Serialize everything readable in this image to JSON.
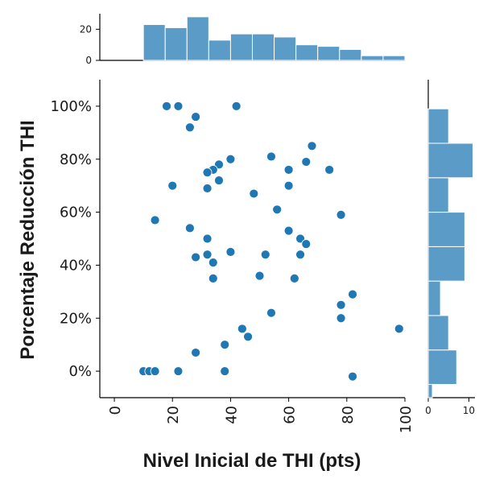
{
  "chart_data": {
    "type": "scatter",
    "title": "",
    "xlabel": "Nivel Inicial de THI (pts)",
    "ylabel": "Porcentaje Reducción THI",
    "xlim": [
      -5,
      100
    ],
    "ylim": [
      -10,
      110
    ],
    "x_ticks": [
      0,
      20,
      40,
      60,
      80,
      100
    ],
    "y_ticks": [
      0,
      20,
      40,
      60,
      80,
      100
    ],
    "y_tick_labels": [
      "0%",
      "20%",
      "40%",
      "60%",
      "80%",
      "100%"
    ],
    "grid": false,
    "point_color": "#1f77b4",
    "hist_color": "#5a9bc8",
    "points": [
      {
        "x": 18,
        "y": 100
      },
      {
        "x": 22,
        "y": 100
      },
      {
        "x": 42,
        "y": 100
      },
      {
        "x": 28,
        "y": 96
      },
      {
        "x": 26,
        "y": 92
      },
      {
        "x": 68,
        "y": 85
      },
      {
        "x": 54,
        "y": 81
      },
      {
        "x": 40,
        "y": 80
      },
      {
        "x": 66,
        "y": 79
      },
      {
        "x": 36,
        "y": 78
      },
      {
        "x": 34,
        "y": 76
      },
      {
        "x": 60,
        "y": 76
      },
      {
        "x": 74,
        "y": 76
      },
      {
        "x": 32,
        "y": 75
      },
      {
        "x": 36,
        "y": 72
      },
      {
        "x": 20,
        "y": 70
      },
      {
        "x": 60,
        "y": 70
      },
      {
        "x": 32,
        "y": 69
      },
      {
        "x": 48,
        "y": 67
      },
      {
        "x": 56,
        "y": 61
      },
      {
        "x": 78,
        "y": 59
      },
      {
        "x": 14,
        "y": 57
      },
      {
        "x": 26,
        "y": 54
      },
      {
        "x": 60,
        "y": 53
      },
      {
        "x": 32,
        "y": 50
      },
      {
        "x": 64,
        "y": 50
      },
      {
        "x": 66,
        "y": 48
      },
      {
        "x": 40,
        "y": 45
      },
      {
        "x": 52,
        "y": 44
      },
      {
        "x": 32,
        "y": 44
      },
      {
        "x": 64,
        "y": 44
      },
      {
        "x": 28,
        "y": 43
      },
      {
        "x": 34,
        "y": 41
      },
      {
        "x": 50,
        "y": 36
      },
      {
        "x": 62,
        "y": 35
      },
      {
        "x": 34,
        "y": 35
      },
      {
        "x": 82,
        "y": 29
      },
      {
        "x": 78,
        "y": 25
      },
      {
        "x": 54,
        "y": 22
      },
      {
        "x": 78,
        "y": 20
      },
      {
        "x": 44,
        "y": 16
      },
      {
        "x": 98,
        "y": 16
      },
      {
        "x": 46,
        "y": 13
      },
      {
        "x": 38,
        "y": 10
      },
      {
        "x": 28,
        "y": 7
      },
      {
        "x": 10,
        "y": 0
      },
      {
        "x": 12,
        "y": 0
      },
      {
        "x": 14,
        "y": 0
      },
      {
        "x": 22,
        "y": 0
      },
      {
        "x": 38,
        "y": 0
      },
      {
        "x": 82,
        "y": -2
      }
    ],
    "top_histogram": {
      "ylim": [
        0,
        30
      ],
      "y_ticks": [
        0,
        20
      ],
      "bins": [
        {
          "start": 10,
          "end": 17.5,
          "count": 23
        },
        {
          "start": 17.5,
          "end": 25,
          "count": 21
        },
        {
          "start": 25,
          "end": 32.5,
          "count": 28
        },
        {
          "start": 32.5,
          "end": 40,
          "count": 13
        },
        {
          "start": 40,
          "end": 47.5,
          "count": 17
        },
        {
          "start": 47.5,
          "end": 55,
          "count": 17
        },
        {
          "start": 55,
          "end": 62.5,
          "count": 15
        },
        {
          "start": 62.5,
          "end": 70,
          "count": 10
        },
        {
          "start": 70,
          "end": 77.5,
          "count": 9
        },
        {
          "start": 77.5,
          "end": 85,
          "count": 7
        },
        {
          "start": 85,
          "end": 92.5,
          "count": 3
        },
        {
          "start": 92.5,
          "end": 100,
          "count": 3
        }
      ]
    },
    "right_histogram": {
      "xlim": [
        0,
        11.5
      ],
      "x_ticks": [
        0,
        10
      ],
      "bins": [
        {
          "start": -10,
          "end": -5,
          "count": 1
        },
        {
          "start": -5,
          "end": 8,
          "count": 7
        },
        {
          "start": 8,
          "end": 21,
          "count": 5
        },
        {
          "start": 21,
          "end": 34,
          "count": 3
        },
        {
          "start": 34,
          "end": 47,
          "count": 9
        },
        {
          "start": 47,
          "end": 60,
          "count": 9
        },
        {
          "start": 60,
          "end": 73,
          "count": 5
        },
        {
          "start": 73,
          "end": 86,
          "count": 11
        },
        {
          "start": 86,
          "end": 99,
          "count": 5
        }
      ]
    }
  }
}
